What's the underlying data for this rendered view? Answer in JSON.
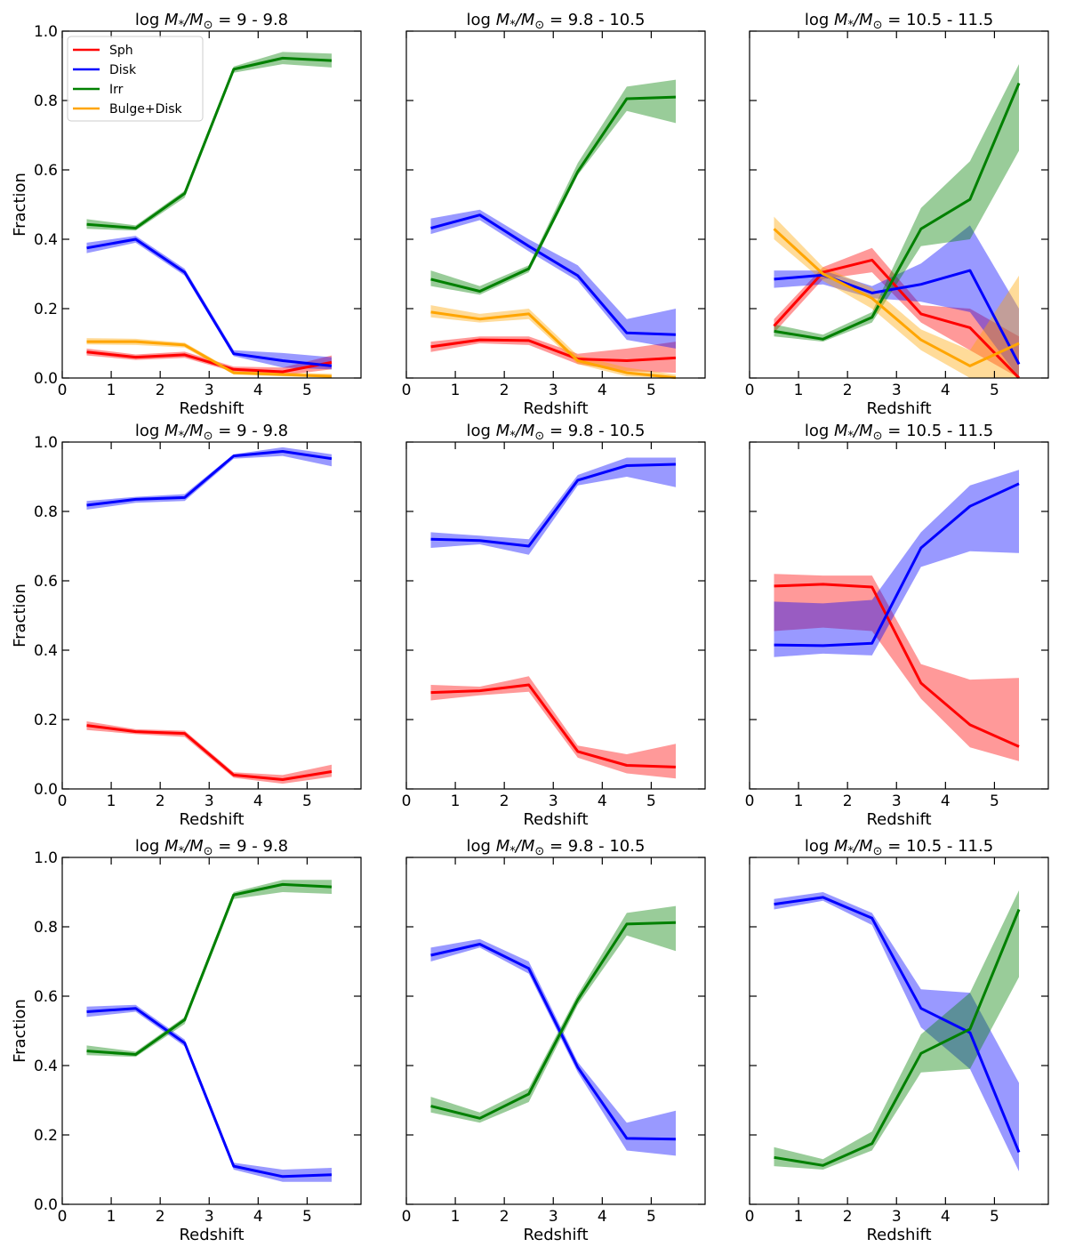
{
  "figure": {
    "xlabel": "Redshift",
    "ylabel": "Fraction",
    "xlim": [
      0,
      6.1
    ],
    "ylim": [
      0,
      1.0
    ],
    "x_ticks": [
      "0",
      "1",
      "2",
      "3",
      "4",
      "5"
    ],
    "y_ticks": [
      "0.0",
      "0.2",
      "0.4",
      "0.6",
      "0.8",
      "1.0"
    ],
    "colors": {
      "Sph": "#ff0000",
      "Disk": "#0000ff",
      "Irr": "#008000",
      "Bulge+Disk": "#ffa500"
    },
    "legend": [
      "Sph",
      "Disk",
      "Irr",
      "Bulge+Disk"
    ],
    "panel_titles": [
      "log M*/M⊙ = 9 - 9.8",
      "log M*/M⊙ = 9.8 - 10.5",
      "log M*/M⊙ = 10.5 - 11.5"
    ],
    "title_parts": {
      "prefix": "log ",
      "M": "M",
      "star": "*",
      "slash": "/",
      "Msun": "M",
      "sun": "⊙"
    },
    "title_ranges": [
      " = 9 - 9.8",
      " = 9.8 - 10.5",
      " = 10.5 - 11.5"
    ]
  },
  "chart_data": [
    {
      "type": "line",
      "row": 0,
      "col": 0,
      "title": "log M*/M⊙ = 9 - 9.8",
      "xlabel": "Redshift",
      "ylabel": "Fraction",
      "ylim": [
        0,
        1
      ],
      "x": [
        0.5,
        1.5,
        2.5,
        3.5,
        4.5,
        5.5
      ],
      "series": [
        {
          "name": "Sph",
          "values": [
            0.075,
            0.06,
            0.067,
            0.025,
            0.018,
            0.045
          ],
          "lower": [
            0.065,
            0.052,
            0.058,
            0.018,
            0.008,
            0.025
          ],
          "upper": [
            0.085,
            0.068,
            0.076,
            0.033,
            0.03,
            0.065
          ]
        },
        {
          "name": "Disk",
          "values": [
            0.375,
            0.4,
            0.305,
            0.07,
            0.05,
            0.035
          ],
          "lower": [
            0.36,
            0.39,
            0.295,
            0.063,
            0.03,
            0.025
          ],
          "upper": [
            0.39,
            0.41,
            0.315,
            0.08,
            0.072,
            0.06
          ]
        },
        {
          "name": "Irr",
          "values": [
            0.443,
            0.432,
            0.532,
            0.89,
            0.922,
            0.915
          ],
          "lower": [
            0.43,
            0.425,
            0.52,
            0.88,
            0.905,
            0.895
          ],
          "upper": [
            0.458,
            0.44,
            0.54,
            0.898,
            0.94,
            0.935
          ]
        },
        {
          "name": "Bulge+Disk",
          "values": [
            0.105,
            0.105,
            0.095,
            0.015,
            0.01,
            0.005
          ],
          "lower": [
            0.097,
            0.095,
            0.088,
            0.01,
            0.005,
            0.001
          ],
          "upper": [
            0.115,
            0.113,
            0.102,
            0.02,
            0.016,
            0.012
          ]
        }
      ]
    },
    {
      "type": "line",
      "row": 0,
      "col": 1,
      "title": "log M*/M⊙ = 9.8 - 10.5",
      "xlabel": "Redshift",
      "ylabel": "Fraction",
      "ylim": [
        0,
        1
      ],
      "x": [
        0.5,
        1.5,
        2.5,
        3.5,
        4.5,
        5.5
      ],
      "series": [
        {
          "name": "Sph",
          "values": [
            0.09,
            0.11,
            0.108,
            0.055,
            0.05,
            0.058
          ],
          "lower": [
            0.075,
            0.1,
            0.095,
            0.04,
            0.02,
            0.015
          ],
          "upper": [
            0.105,
            0.12,
            0.12,
            0.07,
            0.085,
            0.105
          ]
        },
        {
          "name": "Disk",
          "values": [
            0.432,
            0.47,
            0.38,
            0.295,
            0.13,
            0.125
          ],
          "lower": [
            0.415,
            0.455,
            0.365,
            0.28,
            0.11,
            0.085
          ],
          "upper": [
            0.46,
            0.485,
            0.4,
            0.325,
            0.17,
            0.2
          ]
        },
        {
          "name": "Irr",
          "values": [
            0.285,
            0.25,
            0.315,
            0.595,
            0.805,
            0.81
          ],
          "lower": [
            0.265,
            0.24,
            0.305,
            0.585,
            0.77,
            0.735
          ],
          "upper": [
            0.31,
            0.265,
            0.325,
            0.62,
            0.84,
            0.86
          ]
        },
        {
          "name": "Bulge+Disk",
          "values": [
            0.19,
            0.17,
            0.185,
            0.05,
            0.015,
            0.001
          ],
          "lower": [
            0.175,
            0.16,
            0.17,
            0.04,
            0.005,
            0.0
          ],
          "upper": [
            0.21,
            0.185,
            0.2,
            0.065,
            0.03,
            0.01
          ]
        }
      ]
    },
    {
      "type": "line",
      "row": 0,
      "col": 2,
      "title": "log M*/M⊙ = 10.5 - 11.5",
      "xlabel": "Redshift",
      "ylabel": "Fraction",
      "ylim": [
        0,
        1
      ],
      "x": [
        0.5,
        1.5,
        2.5,
        3.5,
        4.5,
        5.5
      ],
      "series": [
        {
          "name": "Sph",
          "values": [
            0.15,
            0.305,
            0.34,
            0.185,
            0.145,
            0.0
          ],
          "lower": [
            0.13,
            0.285,
            0.305,
            0.16,
            0.08,
            0.0
          ],
          "upper": [
            0.17,
            0.32,
            0.375,
            0.21,
            0.2,
            0.12
          ]
        },
        {
          "name": "Disk",
          "values": [
            0.285,
            0.297,
            0.245,
            0.27,
            0.31,
            0.04
          ],
          "lower": [
            0.26,
            0.27,
            0.23,
            0.22,
            0.19,
            0.0
          ],
          "upper": [
            0.31,
            0.31,
            0.265,
            0.33,
            0.44,
            0.2
          ]
        },
        {
          "name": "Irr",
          "values": [
            0.135,
            0.112,
            0.175,
            0.43,
            0.515,
            0.85
          ],
          "lower": [
            0.12,
            0.105,
            0.16,
            0.38,
            0.4,
            0.655
          ],
          "upper": [
            0.155,
            0.125,
            0.19,
            0.49,
            0.625,
            0.905
          ]
        },
        {
          "name": "Bulge+Disk",
          "values": [
            0.43,
            0.3,
            0.23,
            0.11,
            0.035,
            0.1
          ],
          "lower": [
            0.4,
            0.28,
            0.2,
            0.08,
            0.0,
            0.0
          ],
          "upper": [
            0.465,
            0.32,
            0.26,
            0.14,
            0.08,
            0.295
          ]
        }
      ]
    },
    {
      "type": "line",
      "row": 1,
      "col": 0,
      "title": "log M*/M⊙ = 9 - 9.8",
      "xlabel": "Redshift",
      "ylabel": "Fraction",
      "ylim": [
        0,
        1
      ],
      "x": [
        0.5,
        1.5,
        2.5,
        3.5,
        4.5,
        5.5
      ],
      "series": [
        {
          "name": "Sph",
          "values": [
            0.183,
            0.165,
            0.16,
            0.04,
            0.027,
            0.05
          ],
          "lower": [
            0.17,
            0.158,
            0.15,
            0.032,
            0.015,
            0.035
          ],
          "upper": [
            0.195,
            0.172,
            0.168,
            0.048,
            0.04,
            0.07
          ]
        },
        {
          "name": "Disk",
          "values": [
            0.818,
            0.835,
            0.84,
            0.96,
            0.973,
            0.952
          ],
          "lower": [
            0.805,
            0.825,
            0.83,
            0.952,
            0.96,
            0.93
          ],
          "upper": [
            0.83,
            0.842,
            0.85,
            0.965,
            0.985,
            0.965
          ]
        }
      ]
    },
    {
      "type": "line",
      "row": 1,
      "col": 1,
      "title": "log M*/M⊙ = 9.8 - 10.5",
      "xlabel": "Redshift",
      "ylabel": "Fraction",
      "ylim": [
        0,
        1
      ],
      "x": [
        0.5,
        1.5,
        2.5,
        3.5,
        4.5,
        5.5
      ],
      "series": [
        {
          "name": "Sph",
          "values": [
            0.278,
            0.283,
            0.3,
            0.108,
            0.068,
            0.063
          ],
          "lower": [
            0.255,
            0.27,
            0.28,
            0.09,
            0.045,
            0.03
          ],
          "upper": [
            0.3,
            0.295,
            0.325,
            0.125,
            0.1,
            0.13
          ]
        },
        {
          "name": "Disk",
          "values": [
            0.72,
            0.716,
            0.7,
            0.89,
            0.932,
            0.936
          ],
          "lower": [
            0.695,
            0.705,
            0.675,
            0.875,
            0.9,
            0.87
          ],
          "upper": [
            0.74,
            0.73,
            0.72,
            0.905,
            0.955,
            0.955
          ]
        }
      ]
    },
    {
      "type": "line",
      "row": 1,
      "col": 2,
      "title": "log M*/M⊙ = 10.5 - 11.5",
      "xlabel": "Redshift",
      "ylabel": "Fraction",
      "ylim": [
        0,
        1
      ],
      "x": [
        0.5,
        1.5,
        2.5,
        3.5,
        4.5,
        5.5
      ],
      "series": [
        {
          "name": "Sph",
          "values": [
            0.585,
            0.59,
            0.582,
            0.305,
            0.185,
            0.122
          ],
          "lower": [
            0.455,
            0.465,
            0.455,
            0.26,
            0.12,
            0.08
          ],
          "upper": [
            0.62,
            0.615,
            0.615,
            0.36,
            0.315,
            0.32
          ]
        },
        {
          "name": "Disk",
          "values": [
            0.415,
            0.413,
            0.42,
            0.695,
            0.815,
            0.88
          ],
          "lower": [
            0.38,
            0.39,
            0.385,
            0.64,
            0.685,
            0.68
          ],
          "upper": [
            0.54,
            0.535,
            0.545,
            0.74,
            0.875,
            0.92
          ]
        }
      ]
    },
    {
      "type": "line",
      "row": 2,
      "col": 0,
      "title": "log M*/M⊙ = 9 - 9.8",
      "xlabel": "Redshift",
      "ylabel": "Fraction",
      "ylim": [
        0,
        1
      ],
      "x": [
        0.5,
        1.5,
        2.5,
        3.5,
        4.5,
        5.5
      ],
      "series": [
        {
          "name": "Disk",
          "values": [
            0.555,
            0.565,
            0.465,
            0.11,
            0.08,
            0.085
          ],
          "lower": [
            0.54,
            0.555,
            0.455,
            0.1,
            0.065,
            0.065
          ],
          "upper": [
            0.57,
            0.575,
            0.475,
            0.12,
            0.1,
            0.105
          ]
        },
        {
          "name": "Irr",
          "values": [
            0.442,
            0.432,
            0.532,
            0.892,
            0.922,
            0.915
          ],
          "lower": [
            0.43,
            0.425,
            0.52,
            0.88,
            0.9,
            0.895
          ],
          "upper": [
            0.458,
            0.44,
            0.54,
            0.9,
            0.935,
            0.935
          ]
        }
      ]
    },
    {
      "type": "line",
      "row": 2,
      "col": 1,
      "title": "log M*/M⊙ = 9.8 - 10.5",
      "xlabel": "Redshift",
      "ylabel": "Fraction",
      "ylim": [
        0,
        1
      ],
      "x": [
        0.5,
        1.5,
        2.5,
        3.5,
        4.5,
        5.5
      ],
      "series": [
        {
          "name": "Disk",
          "values": [
            0.718,
            0.75,
            0.68,
            0.395,
            0.19,
            0.188
          ],
          "lower": [
            0.7,
            0.74,
            0.665,
            0.38,
            0.155,
            0.14
          ],
          "upper": [
            0.74,
            0.765,
            0.7,
            0.41,
            0.235,
            0.27
          ]
        },
        {
          "name": "Irr",
          "values": [
            0.283,
            0.248,
            0.318,
            0.59,
            0.808,
            0.812
          ],
          "lower": [
            0.265,
            0.235,
            0.295,
            0.575,
            0.775,
            0.73
          ],
          "upper": [
            0.31,
            0.265,
            0.335,
            0.605,
            0.84,
            0.86
          ]
        }
      ]
    },
    {
      "type": "line",
      "row": 2,
      "col": 2,
      "title": "log M*/M⊙ = 10.5 - 11.5",
      "xlabel": "Redshift",
      "ylabel": "Fraction",
      "ylim": [
        0,
        1
      ],
      "x": [
        0.5,
        1.5,
        2.5,
        3.5,
        4.5,
        5.5
      ],
      "series": [
        {
          "name": "Disk",
          "values": [
            0.865,
            0.885,
            0.825,
            0.565,
            0.495,
            0.15
          ],
          "lower": [
            0.85,
            0.875,
            0.805,
            0.51,
            0.39,
            0.095
          ],
          "upper": [
            0.88,
            0.9,
            0.84,
            0.62,
            0.61,
            0.35
          ]
        },
        {
          "name": "Irr",
          "values": [
            0.135,
            0.112,
            0.175,
            0.435,
            0.505,
            0.85
          ],
          "lower": [
            0.11,
            0.1,
            0.155,
            0.38,
            0.39,
            0.655
          ],
          "upper": [
            0.165,
            0.13,
            0.21,
            0.49,
            0.61,
            0.905
          ]
        }
      ]
    }
  ]
}
